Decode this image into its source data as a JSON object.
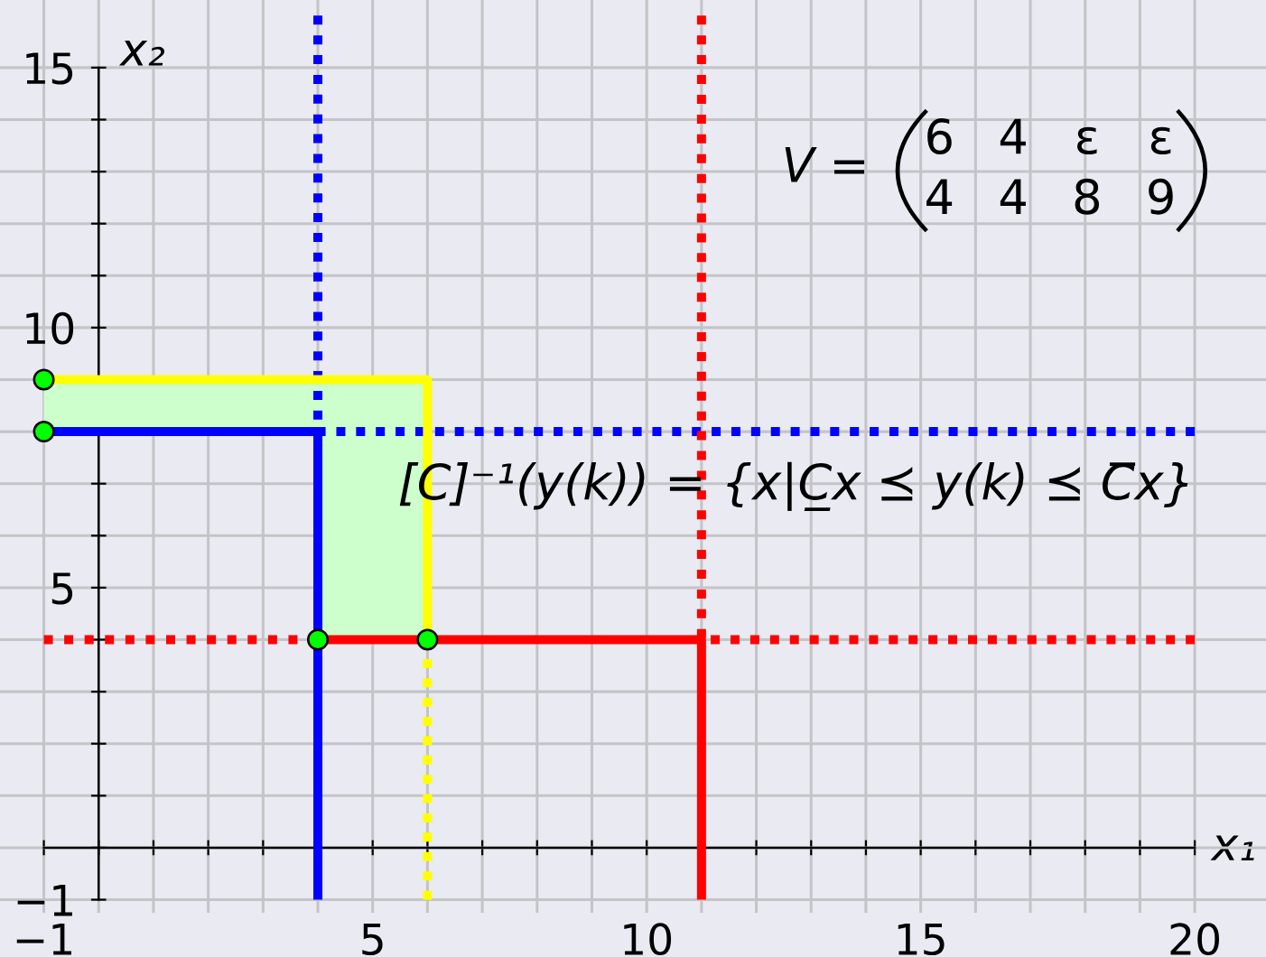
{
  "chart_data": {
    "type": "line",
    "xlabel": "x₁",
    "ylabel": "x₂",
    "xlim": [
      -1.8,
      21.3
    ],
    "ylim": [
      -1.25,
      16.3
    ],
    "xticks": [
      {
        "value": -1,
        "label": "−1"
      },
      {
        "value": 0,
        "label": null
      },
      {
        "value": 1,
        "label": null
      },
      {
        "value": 2,
        "label": null
      },
      {
        "value": 3,
        "label": null
      },
      {
        "value": 4,
        "label": null
      },
      5,
      {
        "value": 6,
        "label": null
      },
      {
        "value": 7,
        "label": null
      },
      {
        "value": 8,
        "label": null
      },
      {
        "value": 9,
        "label": null
      },
      10,
      {
        "value": 11,
        "label": null
      },
      {
        "value": 12,
        "label": null
      },
      {
        "value": 13,
        "label": null
      },
      {
        "value": 14,
        "label": null
      },
      15,
      {
        "value": 16,
        "label": null
      },
      {
        "value": 17,
        "label": null
      },
      {
        "value": 18,
        "label": null
      },
      {
        "value": 19,
        "label": null
      },
      20
    ],
    "yticks": [
      {
        "value": -1,
        "label": "−1"
      },
      {
        "value": 0,
        "label": null
      },
      {
        "value": 1,
        "label": null
      },
      {
        "value": 2,
        "label": null
      },
      {
        "value": 3,
        "label": null
      },
      {
        "value": 4,
        "label": null
      },
      5,
      {
        "value": 6,
        "label": null
      },
      {
        "value": 7,
        "label": null
      },
      {
        "value": 8,
        "label": null
      },
      {
        "value": 9,
        "label": null
      },
      10,
      {
        "value": 11,
        "label": null
      },
      {
        "value": 12,
        "label": null
      },
      {
        "value": 13,
        "label": null
      },
      {
        "value": 14,
        "label": null
      },
      15
    ],
    "grid": true,
    "annotations": [
      "V =",
      "6 4 ε ε",
      "4 4 8 9",
      "[C]⁻¹(y(k)) = {x|C̲x ⪯ y(k) ⪯ C̅x}"
    ],
    "series": [
      {
        "color": "#ccffcc",
        "x": [
          -1,
          4,
          4,
          6
        ],
        "values": [
          null,
          null,
          null,
          null
        ],
        "lower": [
          8,
          8,
          4,
          4
        ],
        "upper": [
          9,
          9,
          9,
          9
        ]
      },
      {
        "color": "#0000ff",
        "line_style": "solid",
        "x": [
          -1,
          4,
          4
        ],
        "values": [
          8,
          8,
          -1
        ]
      },
      {
        "color": "#0000ff",
        "line_style": "dotted",
        "x": [
          4,
          4,
          20
        ],
        "values": [
          16,
          8,
          8
        ]
      },
      {
        "color": "#ffff00",
        "line_style": "solid",
        "x": [
          -1,
          6,
          6
        ],
        "values": [
          9,
          9,
          4
        ]
      },
      {
        "color": "#ffff00",
        "line_style": "dotted",
        "x": [
          6,
          6
        ],
        "values": [
          4,
          -1
        ]
      },
      {
        "color": "#ff0000",
        "line_style": "solid",
        "x": [
          4,
          11,
          11
        ],
        "values": [
          4,
          4,
          -1
        ]
      },
      {
        "color": "#ff0000",
        "line_style": "dotted",
        "x": [
          -1,
          4
        ],
        "values": [
          4,
          4
        ]
      },
      {
        "color": "#ff0000",
        "line_style": "dotted",
        "x": [
          11,
          11,
          20
        ],
        "values": [
          16,
          4,
          4
        ]
      },
      {
        "type": "scatter",
        "color": "#00ff00",
        "marker": "circle",
        "x": [
          -1,
          -1,
          4,
          6
        ],
        "values": [
          9,
          8,
          4,
          4
        ]
      }
    ]
  }
}
